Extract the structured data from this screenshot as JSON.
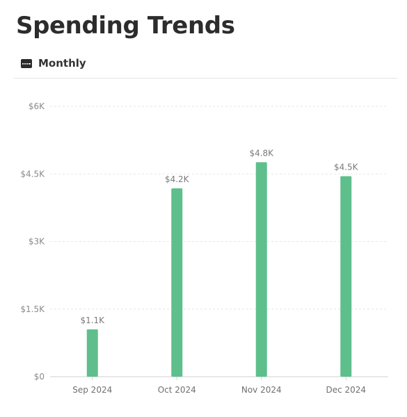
{
  "header": {
    "title": "Spending Trends",
    "tab_label": "Monthly",
    "tab_icon": "credit-card-icon"
  },
  "colors": {
    "bar": "#5fbf8c",
    "grid": "#e6e6e6",
    "axis": "#cfcfcf"
  },
  "chart_data": {
    "type": "bar",
    "categories": [
      "Sep 2024",
      "Oct 2024",
      "Nov 2024",
      "Dec 2024"
    ],
    "values": [
      1050,
      4180,
      4760,
      4450
    ],
    "data_labels": [
      "$1.1K",
      "$4.2K",
      "$4.8K",
      "$4.5K"
    ],
    "ylim": [
      0,
      6000
    ],
    "yticks": [
      0,
      1500,
      3000,
      4500,
      6000
    ],
    "ytick_labels": [
      "$0",
      "$1.5K",
      "$3K",
      "$4.5K",
      "$6K"
    ],
    "grid": true,
    "title": "",
    "xlabel": "",
    "ylabel": ""
  }
}
